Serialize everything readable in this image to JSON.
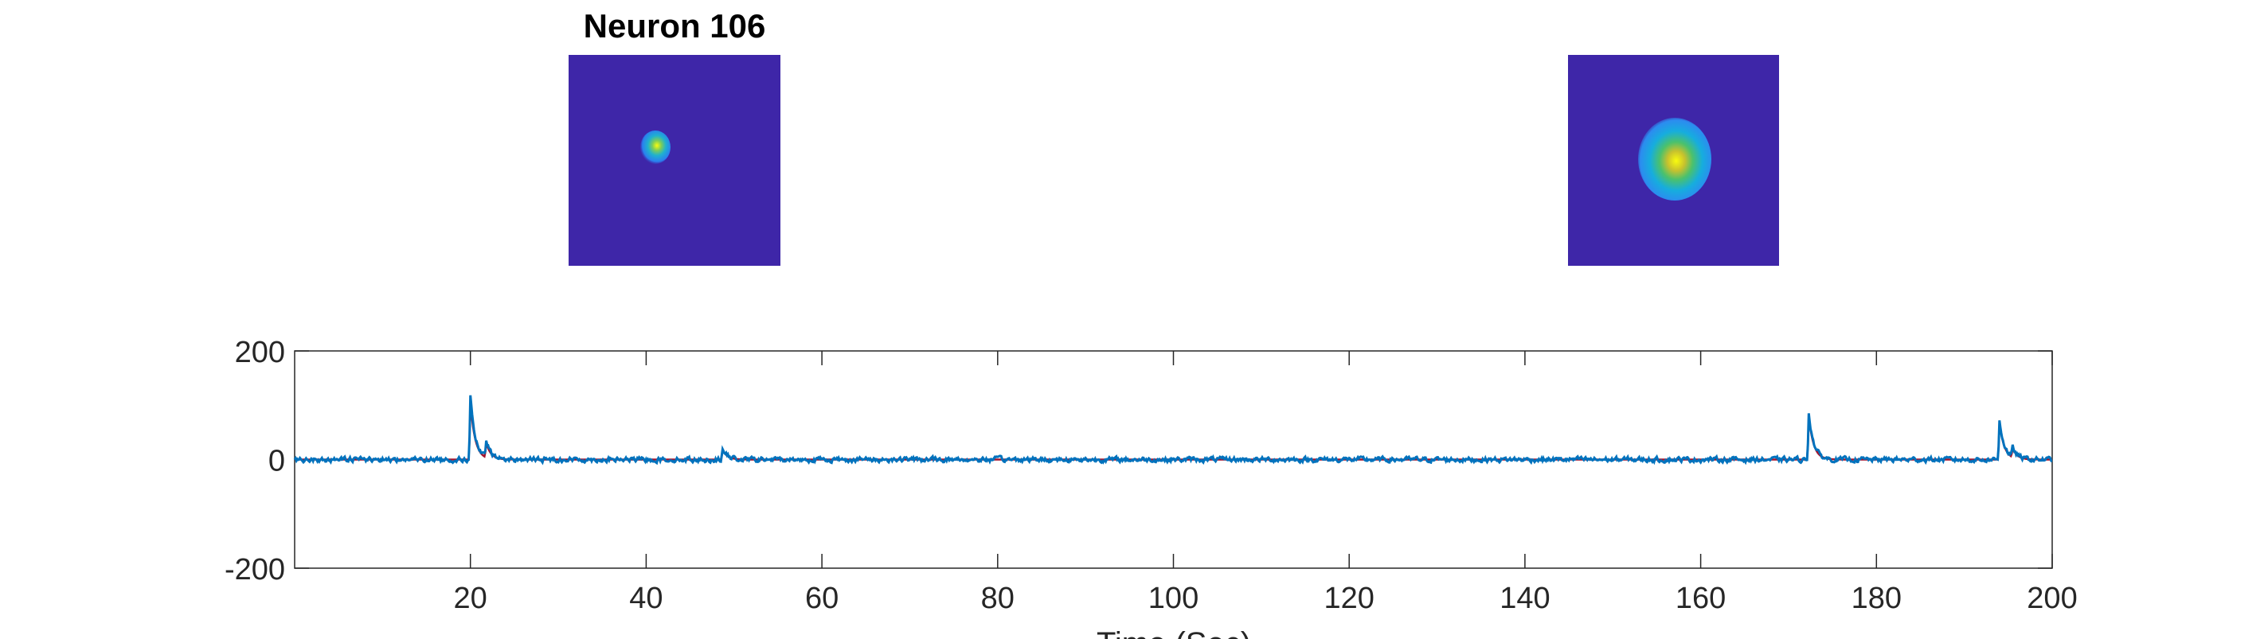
{
  "figure": {
    "title": "Neuron 106",
    "xlabel": "Time (Sec)"
  },
  "images": [
    {
      "name": "spatial-footprint-small",
      "colormap_bg": "#3e26a8",
      "blob": "small"
    },
    {
      "name": "spatial-footprint-large",
      "colormap_bg": "#3e26a8",
      "blob": "large"
    }
  ],
  "colors": {
    "trace_raw": "#0072bd",
    "trace_fit": "#a2142f",
    "axis": "#262626",
    "plot_bg": "#ffffff"
  },
  "chart_data": {
    "type": "line",
    "title": "",
    "xlabel": "Time (Sec)",
    "ylabel": "",
    "xlim": [
      0,
      200
    ],
    "ylim": [
      -200,
      200
    ],
    "xticks": [
      20,
      40,
      60,
      80,
      100,
      120,
      140,
      160,
      180,
      200
    ],
    "yticks": [
      -200,
      0,
      200
    ],
    "grid": false,
    "baseline": 0,
    "noise_amplitude": 8,
    "transients": [
      {
        "x": 20.0,
        "y": 115
      },
      {
        "x": 21.8,
        "y": 30
      },
      {
        "x": 48.7,
        "y": 20
      },
      {
        "x": 172.3,
        "y": 88
      },
      {
        "x": 194.0,
        "y": 75
      },
      {
        "x": 195.5,
        "y": 18
      }
    ],
    "series": [
      {
        "color": "#0072bd"
      },
      {
        "color": "#a2142f"
      }
    ]
  }
}
